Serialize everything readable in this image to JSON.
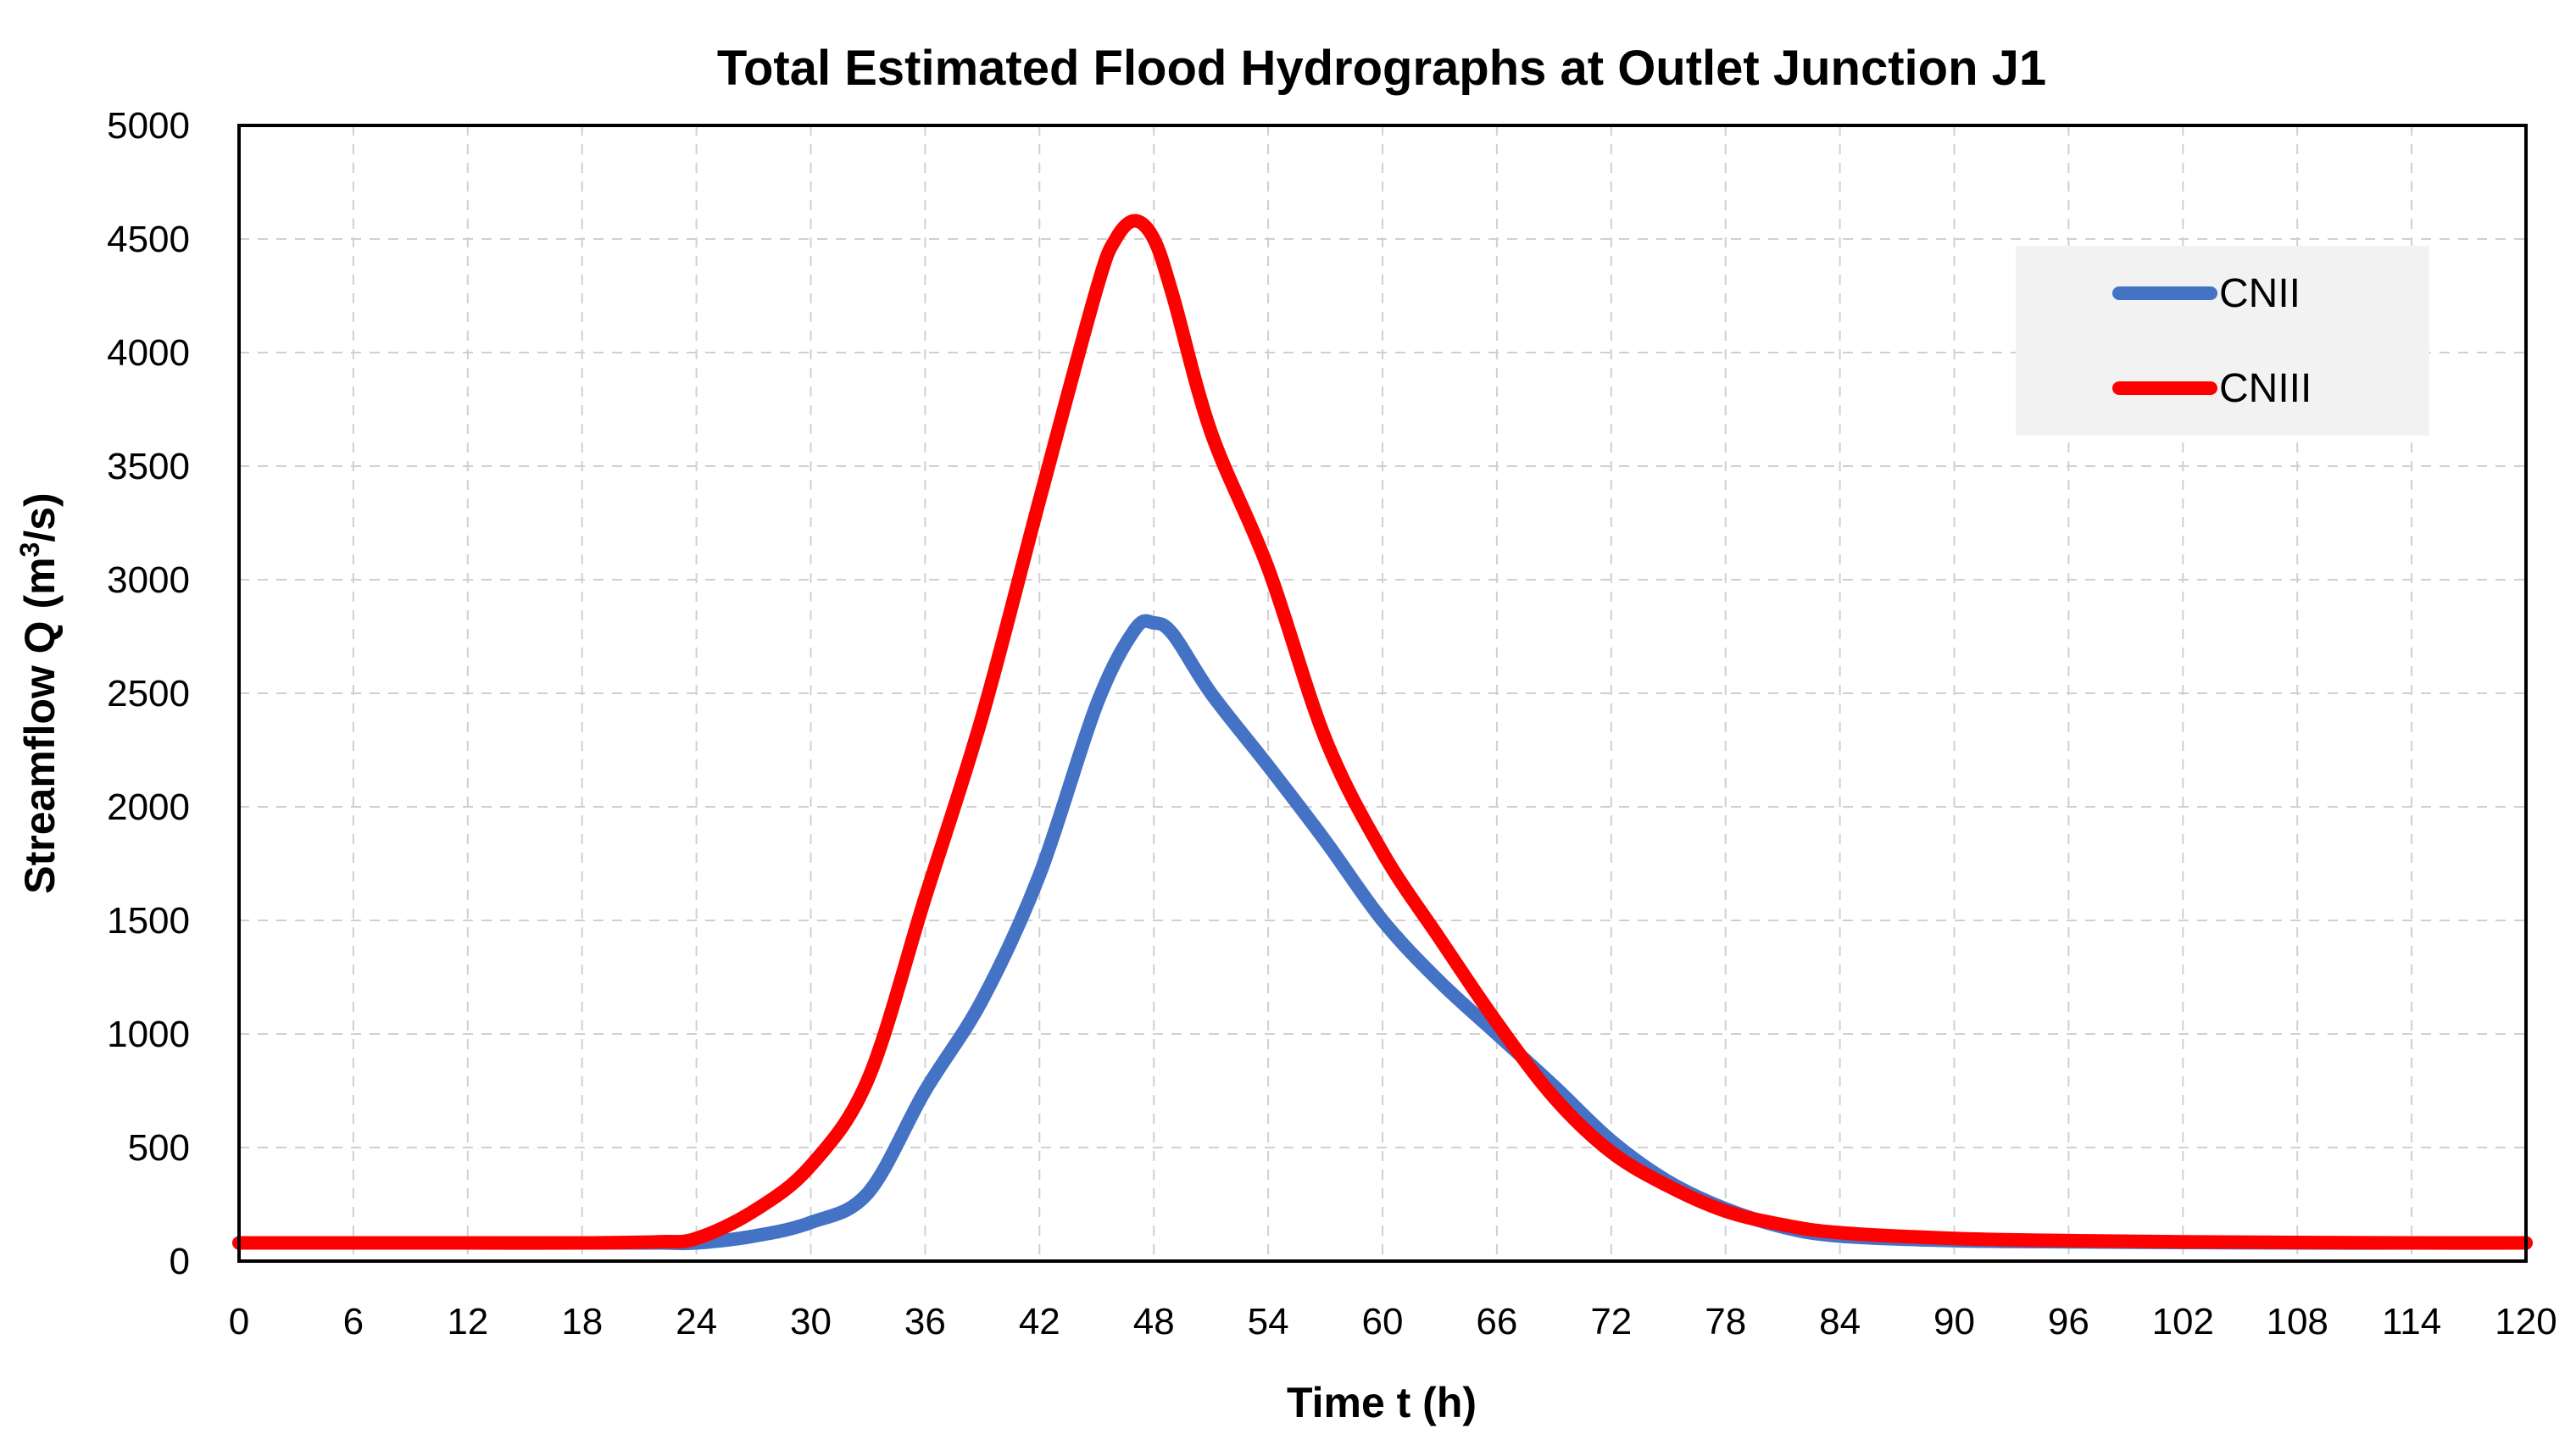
{
  "chart_data": {
    "type": "line",
    "title": "Total Estimated Flood Hydrographs at Outlet Junction J1",
    "xlabel": "Time t (h)",
    "ylabel": "Streamflow Q (m",
    "ylabel_sup": "3",
    "ylabel_tail": "/s)",
    "xlim": [
      0,
      120
    ],
    "ylim": [
      0,
      5000
    ],
    "xticks": [
      0,
      6,
      12,
      18,
      24,
      30,
      36,
      42,
      48,
      54,
      60,
      66,
      72,
      78,
      84,
      90,
      96,
      102,
      108,
      114,
      120
    ],
    "yticks": [
      0,
      500,
      1000,
      1500,
      2000,
      2500,
      3000,
      3500,
      4000,
      4500,
      5000
    ],
    "grid": true,
    "legend_position": "top-right",
    "series": [
      {
        "name": "CNII",
        "color": "#4472c4",
        "x": [
          0,
          6,
          12,
          18,
          22,
          24,
          27,
          30,
          33,
          36,
          39,
          42,
          45,
          47,
          48,
          49,
          51,
          54,
          57,
          60,
          63,
          66,
          69,
          72,
          75,
          78,
          81,
          84,
          90,
          96,
          102,
          108,
          114,
          120
        ],
        "y": [
          80,
          80,
          80,
          80,
          80,
          80,
          110,
          170,
          300,
          750,
          1150,
          1700,
          2450,
          2780,
          2810,
          2760,
          2500,
          2180,
          1850,
          1500,
          1230,
          1000,
          770,
          530,
          350,
          230,
          150,
          110,
          90,
          85,
          82,
          80,
          80,
          80
        ]
      },
      {
        "name": "CNIII",
        "color": "#ff0000",
        "x": [
          0,
          6,
          12,
          18,
          22,
          24,
          27,
          30,
          33,
          36,
          39,
          42,
          45,
          46,
          47,
          48,
          49,
          51,
          54,
          57,
          60,
          63,
          66,
          69,
          72,
          75,
          78,
          81,
          84,
          90,
          96,
          102,
          108,
          114,
          120
        ],
        "y": [
          80,
          80,
          80,
          80,
          85,
          100,
          220,
          420,
          800,
          1600,
          2400,
          3350,
          4280,
          4500,
          4580,
          4500,
          4250,
          3650,
          3050,
          2300,
          1800,
          1420,
          1050,
          720,
          480,
          330,
          220,
          160,
          125,
          100,
          90,
          85,
          82,
          80,
          80
        ]
      }
    ]
  }
}
